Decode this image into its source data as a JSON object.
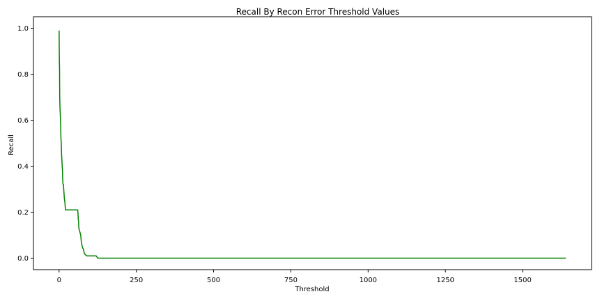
{
  "chart_data": {
    "type": "line",
    "title": "Recall By Recon Error Threshold Values",
    "xlabel": "Threshold",
    "ylabel": "Recall",
    "xlim": [
      -83,
      1723
    ],
    "ylim": [
      -0.05,
      1.05
    ],
    "xticks": [
      0,
      250,
      500,
      750,
      1000,
      1250,
      1500
    ],
    "yticks": [
      0.0,
      0.2,
      0.4,
      0.6,
      0.8,
      1.0
    ],
    "ytick_labels": [
      "0.0",
      "0.2",
      "0.4",
      "0.6",
      "0.8",
      "1.0"
    ],
    "grid": false,
    "legend": null,
    "series": [
      {
        "color": "#008000",
        "x": [
          0,
          0.5,
          1,
          1.5,
          2,
          3,
          4,
          5,
          6,
          7,
          8,
          9,
          10,
          11,
          12,
          13,
          14,
          15,
          16,
          17,
          18,
          19,
          20,
          21,
          22,
          24,
          26,
          28,
          40,
          55,
          60,
          61,
          62,
          63,
          64,
          66,
          68,
          70,
          72,
          75,
          78,
          80,
          82,
          85,
          90,
          95,
          100,
          120,
          125,
          1640
        ],
        "y": [
          0.99,
          0.9,
          0.85,
          0.82,
          0.7,
          0.65,
          0.62,
          0.58,
          0.52,
          0.5,
          0.45,
          0.43,
          0.4,
          0.38,
          0.33,
          0.32,
          0.32,
          0.3,
          0.28,
          0.26,
          0.25,
          0.24,
          0.22,
          0.21,
          0.21,
          0.21,
          0.21,
          0.21,
          0.21,
          0.21,
          0.21,
          0.2,
          0.17,
          0.16,
          0.13,
          0.12,
          0.11,
          0.1,
          0.07,
          0.05,
          0.04,
          0.03,
          0.02,
          0.015,
          0.01,
          0.01,
          0.01,
          0.01,
          0.0,
          0.0
        ]
      }
    ]
  }
}
